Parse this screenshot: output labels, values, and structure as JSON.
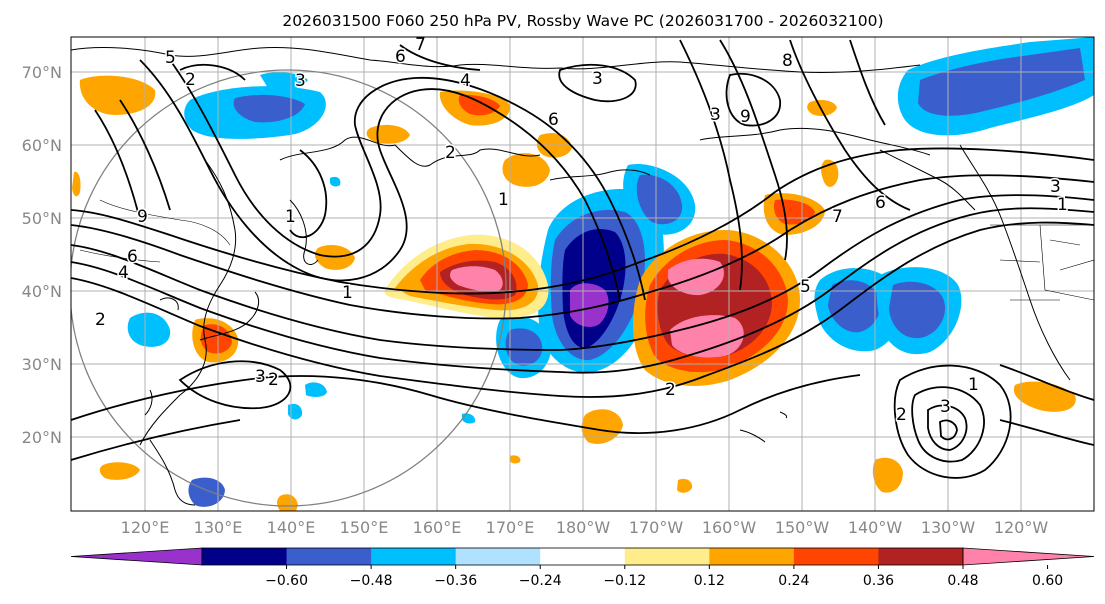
{
  "title": "2026031500 F060 250 hPa PV, Rossby Wave PC (2026031700 - 2026032100)",
  "lat_labels": [
    "70°N",
    "60°N",
    "50°N",
    "40°N",
    "30°N",
    "20°N"
  ],
  "lon_labels": [
    "120°E",
    "130°E",
    "140°E",
    "150°E",
    "160°E",
    "170°E",
    "180°W",
    "170°W",
    "160°W",
    "150°W",
    "140°W",
    "130°W",
    "120°W"
  ],
  "colorbar": {
    "ticks": [
      "−0.60",
      "−0.48",
      "−0.36",
      "−0.24",
      "−0.12",
      "0.12",
      "0.24",
      "0.36",
      "0.48",
      "0.60"
    ],
    "colors": [
      "#9932cc",
      "#00008b",
      "#3a5fcd",
      "#00bfff",
      "#b0e2ff",
      "#ffffff",
      "#ffec8b",
      "#ffa500",
      "#ff4500",
      "#b22222",
      "#ff82ab"
    ]
  },
  "contour_labels": [
    "5",
    "7",
    "6",
    "3",
    "4",
    "3",
    "8",
    "9",
    "2",
    "3",
    "6",
    "2",
    "9",
    "1",
    "1",
    "7",
    "6",
    "3",
    "1",
    "4",
    "6",
    "2",
    "1",
    "2",
    "5",
    "2",
    "3",
    "1",
    "2",
    "3"
  ]
}
